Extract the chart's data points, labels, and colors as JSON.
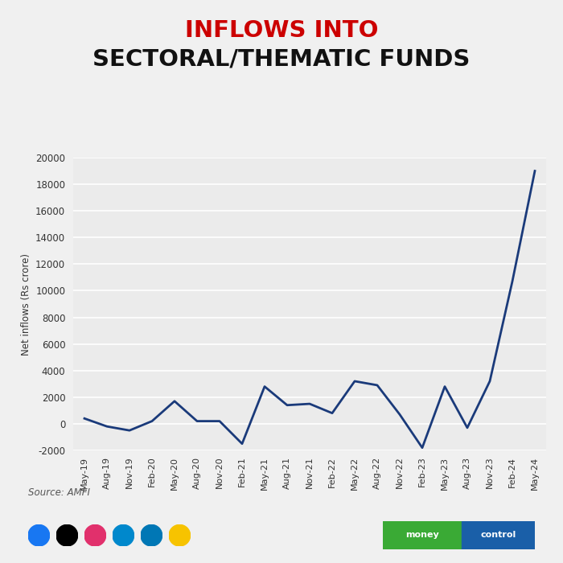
{
  "title_line1": "INFLOWS INTO",
  "title_line2": "SECTORAL/THEMATIC FUNDS",
  "ylabel": "Net inflows (Rs crore)",
  "source": "Source: AMFI",
  "background_color": "#f0f0f0",
  "plot_background": "#ebebeb",
  "line_color": "#1a3a7a",
  "line_width": 2.0,
  "ylim": [
    -2000,
    20000
  ],
  "yticks": [
    -2000,
    0,
    2000,
    4000,
    6000,
    8000,
    10000,
    12000,
    14000,
    16000,
    18000,
    20000
  ],
  "x_labels": [
    "May-19",
    "Aug-19",
    "Nov-19",
    "Feb-20",
    "May-20",
    "Aug-20",
    "Nov-20",
    "Feb-21",
    "May-21",
    "Aug-21",
    "Nov-21",
    "Feb-22",
    "May-22",
    "Aug-22",
    "Nov-22",
    "Feb-23",
    "May-23",
    "Aug-23",
    "Nov-23",
    "Feb-24",
    "May-24"
  ],
  "values": [
    400,
    -200,
    -500,
    200,
    1700,
    200,
    200,
    -1500,
    2800,
    1400,
    1500,
    800,
    3200,
    2900,
    700,
    -1800,
    2800,
    -300,
    3200,
    10700,
    19000
  ],
  "title_color_line1": "#cc0000",
  "title_color_line2": "#111111",
  "icon_colors": [
    "#1877f2",
    "#000000",
    "#e1306c",
    "#0088cc",
    "#0077b5",
    "#f7c300"
  ],
  "badge_left_color": "#4caf50",
  "badge_right_color": "#1565a8"
}
